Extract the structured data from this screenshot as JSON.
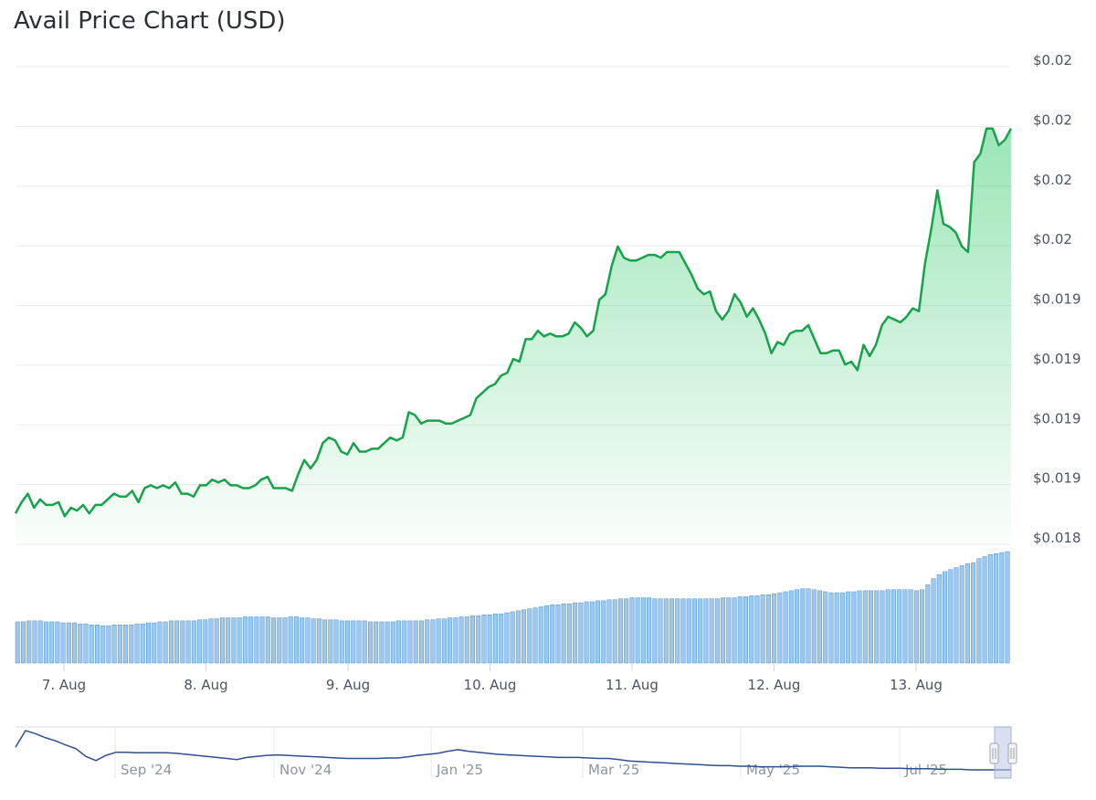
{
  "chart_data": {
    "type": "line",
    "title": "Avail Price Chart (USD)",
    "ylabel": "",
    "xlabel": "",
    "y_tick_labels": [
      "$0.02",
      "$0.02",
      "$0.02",
      "$0.02",
      "$0.019",
      "$0.019",
      "$0.019",
      "$0.019",
      "$0.018"
    ],
    "x_tick_labels": [
      "7. Aug",
      "8. Aug",
      "9. Aug",
      "10. Aug",
      "11. Aug",
      "12. Aug",
      "13. Aug"
    ],
    "ylim": [
      0.0182,
      0.0199
    ],
    "grid": true,
    "legend": "none",
    "colors": {
      "line": "#16a34a",
      "area": "#22c55e",
      "volume": "#9ec9ef",
      "volume_edge": "#4a90d9",
      "navigator": "#2f4f8f"
    },
    "series": [
      {
        "values": [
          0.01831,
          0.01835,
          0.01838,
          0.01833,
          0.01836,
          0.01834,
          0.01834,
          0.01835,
          0.0183,
          0.01833,
          0.01832,
          0.01834,
          0.01831,
          0.01834,
          0.01834,
          0.01836,
          0.01838,
          0.01837,
          0.01837,
          0.01839,
          0.01835,
          0.0184,
          0.01841,
          0.0184,
          0.01841,
          0.0184,
          0.01842,
          0.01838,
          0.01838,
          0.01837,
          0.01841,
          0.01841,
          0.01843,
          0.01842,
          0.01843,
          0.01841,
          0.01841,
          0.0184,
          0.0184,
          0.01841,
          0.01843,
          0.01844,
          0.0184,
          0.0184,
          0.0184,
          0.01839,
          0.01845,
          0.0185,
          0.01847,
          0.0185,
          0.01856,
          0.01858,
          0.01857,
          0.01853,
          0.01852,
          0.01856,
          0.01853,
          0.01853,
          0.01854,
          0.01854,
          0.01856,
          0.01858,
          0.01857,
          0.01858,
          0.01867,
          0.01866,
          0.01863,
          0.01864,
          0.01864,
          0.01864,
          0.01863,
          0.01863,
          0.01864,
          0.01865,
          0.01866,
          0.01872,
          0.01874,
          0.01876,
          0.01877,
          0.0188,
          0.01881,
          0.01886,
          0.01885,
          0.01893,
          0.01893,
          0.01896,
          0.01894,
          0.01895,
          0.01894,
          0.01894,
          0.01895,
          0.01899,
          0.01897,
          0.01894,
          0.01896,
          0.01907,
          0.01909,
          0.01919,
          0.01926,
          0.01922,
          0.01921,
          0.01921,
          0.01922,
          0.01923,
          0.01923,
          0.01922,
          0.01924,
          0.01924,
          0.01924,
          0.0192,
          0.01916,
          0.01911,
          0.01909,
          0.0191,
          0.01903,
          0.019,
          0.01903,
          0.01909,
          0.01906,
          0.01901,
          0.01904,
          0.019,
          0.01895,
          0.01888,
          0.01892,
          0.01891,
          0.01895,
          0.01896,
          0.01896,
          0.01898,
          0.01893,
          0.01888,
          0.01888,
          0.01889,
          0.01889,
          0.01884,
          0.01885,
          0.01882,
          0.01891,
          0.01887,
          0.01891,
          0.01898,
          0.01901,
          0.019,
          0.01899,
          0.01901,
          0.01904,
          0.01903,
          0.0192,
          0.01932,
          0.01946,
          0.01934,
          0.01933,
          0.01931,
          0.01926,
          0.01924,
          0.01956,
          0.01959,
          0.01968,
          0.01968,
          0.01962,
          0.01964,
          0.01968
        ]
      }
    ],
    "volume": [
      41,
      41,
      42,
      42,
      42,
      41,
      41,
      41,
      40,
      40,
      40,
      39,
      39,
      38,
      38,
      37,
      37,
      38,
      38,
      38,
      38,
      39,
      39,
      40,
      40,
      41,
      41,
      42,
      42,
      42,
      42,
      42,
      43,
      43,
      44,
      44,
      45,
      45,
      45,
      45,
      46,
      46,
      46,
      46,
      46,
      45,
      45,
      45,
      46,
      46,
      45,
      45,
      44,
      44,
      43,
      43,
      43,
      42,
      42,
      42,
      42,
      42,
      41,
      41,
      41,
      41,
      41,
      42,
      42,
      42,
      42,
      42,
      43,
      43,
      44,
      44,
      45,
      45,
      46,
      46,
      47,
      47,
      48,
      48,
      49,
      49,
      50,
      51,
      52,
      53,
      54,
      55,
      56,
      57,
      58,
      58,
      59,
      59,
      60,
      60,
      61,
      61,
      62,
      62,
      63,
      63,
      64,
      64,
      65,
      65,
      65,
      65,
      64,
      64,
      64,
      64,
      64,
      64,
      64,
      64,
      64,
      64,
      64,
      64,
      65,
      65,
      65,
      66,
      66,
      67,
      67,
      68,
      68,
      69,
      70,
      71,
      72,
      73,
      74,
      74,
      73,
      72,
      71,
      70,
      70,
      70,
      71,
      71,
      72,
      72,
      72,
      72,
      72,
      73,
      73,
      73,
      73,
      73,
      72,
      73,
      78,
      84,
      88,
      91,
      93,
      95,
      97,
      99,
      100,
      104,
      106,
      108,
      109,
      110,
      111
    ],
    "navigator": {
      "tick_labels": [
        "Sep '24",
        "Nov '24",
        "Jan '25",
        "Mar '25",
        "May '25",
        "Jul '25"
      ],
      "values": [
        60,
        92,
        86,
        78,
        72,
        64,
        57,
        42,
        34,
        44,
        50,
        50,
        49,
        49,
        49,
        49,
        48,
        46,
        44,
        42,
        40,
        38,
        36,
        40,
        42,
        44,
        45,
        44,
        43,
        42,
        41,
        40,
        39,
        38,
        38,
        38,
        38,
        39,
        39,
        41,
        44,
        46,
        48,
        52,
        55,
        52,
        50,
        48,
        46,
        45,
        44,
        43,
        42,
        41,
        40,
        40,
        40,
        39,
        38,
        38,
        36,
        33,
        32,
        31,
        30,
        29,
        28,
        27,
        26,
        25,
        24,
        24,
        23,
        23,
        22,
        22,
        22,
        22,
        23,
        23,
        23,
        22,
        21,
        20,
        20,
        20,
        19,
        19,
        19,
        18,
        18,
        18,
        17,
        17,
        17,
        16,
        16,
        16,
        16,
        16
      ]
    }
  }
}
